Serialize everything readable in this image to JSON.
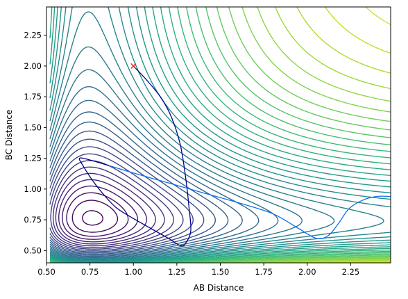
{
  "chart_data": {
    "type": "contour",
    "title": "",
    "xlabel": "AB Distance",
    "ylabel": "BC Distance",
    "xlim": [
      0.5,
      2.48
    ],
    "ylim": [
      0.4,
      2.48
    ],
    "xticks": [
      "0.50",
      "0.75",
      "1.00",
      "1.25",
      "1.50",
      "1.75",
      "2.00",
      "2.25"
    ],
    "yticks": [
      "0.50",
      "0.75",
      "1.00",
      "1.25",
      "1.50",
      "1.75",
      "2.00",
      "2.25"
    ],
    "grid": false,
    "legend": "none",
    "colormap": "viridis",
    "colormap_stops": [
      "#440154",
      "#482878",
      "#3e4a89",
      "#31688e",
      "#26828e",
      "#1f9e89",
      "#35b779",
      "#6ece58",
      "#b5de2b",
      "#fde725"
    ],
    "start_marker": {
      "x": 1.0,
      "y": 2.0,
      "symbol": "x",
      "color": "#ff0000"
    },
    "trajectories": [
      {
        "color": "#00008b",
        "points": [
          [
            1.0,
            2.0
          ],
          [
            1.08,
            1.88
          ],
          [
            1.16,
            1.74
          ],
          [
            1.22,
            1.58
          ],
          [
            1.27,
            1.36
          ],
          [
            1.3,
            1.1
          ],
          [
            1.32,
            0.85
          ],
          [
            1.33,
            0.66
          ],
          [
            1.3,
            0.56
          ],
          [
            1.27,
            0.54
          ],
          [
            1.2,
            0.6
          ],
          [
            1.1,
            0.68
          ],
          [
            1.0,
            0.76
          ],
          [
            0.9,
            0.85
          ],
          [
            0.82,
            0.97
          ],
          [
            0.76,
            1.08
          ],
          [
            0.71,
            1.19
          ],
          [
            0.69,
            1.25
          ],
          [
            0.74,
            1.24
          ],
          [
            0.86,
            1.19
          ]
        ]
      },
      {
        "color": "#0b6ef2",
        "points": [
          [
            0.86,
            1.19
          ],
          [
            1.0,
            1.13
          ],
          [
            1.2,
            1.05
          ],
          [
            1.4,
            0.97
          ],
          [
            1.6,
            0.89
          ],
          [
            1.8,
            0.8
          ],
          [
            1.95,
            0.68
          ],
          [
            2.05,
            0.6
          ],
          [
            2.12,
            0.62
          ],
          [
            2.18,
            0.72
          ],
          [
            2.24,
            0.84
          ],
          [
            2.32,
            0.91
          ],
          [
            2.4,
            0.94
          ],
          [
            2.48,
            0.94
          ]
        ]
      }
    ]
  }
}
